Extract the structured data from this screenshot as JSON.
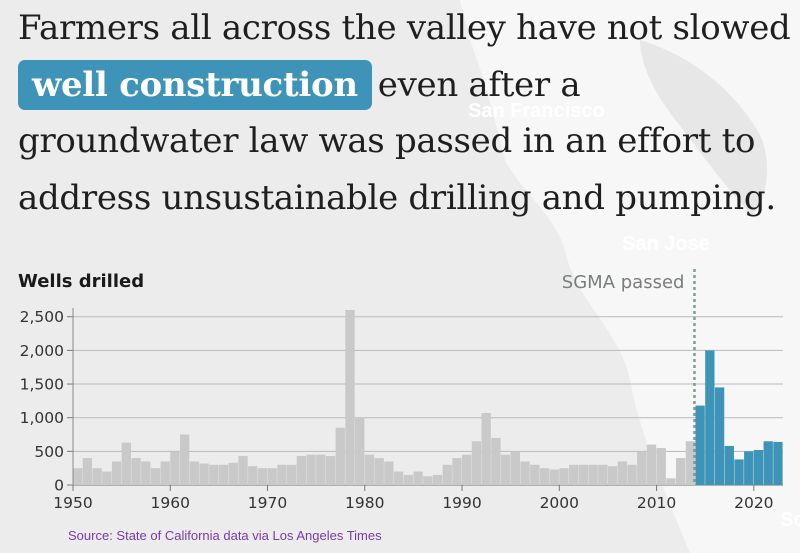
{
  "headline": {
    "line1": "Farmers all across the valley have not slowed",
    "highlight": "well construction",
    "line2_rest": "even after a",
    "line3": "groundwater law was passed in an effort to",
    "line4": "address unsustainable drilling and pumping."
  },
  "map_labels": {
    "city1": "San Francisco",
    "city2": "San Jose",
    "partial": "So"
  },
  "source": "Source: State of California data via Los Angeles Times",
  "colors": {
    "pre_sgma": "#c9c9c9",
    "post_sgma": "#3e94b8",
    "highlight_bg": "#3e94b8",
    "marker": "#7f9c95"
  },
  "chart_data": {
    "type": "bar",
    "ylabel": "Wells drilled",
    "xlim": [
      1950,
      2023
    ],
    "ylim": [
      0,
      2600
    ],
    "yticks": [
      0,
      500,
      1000,
      1500,
      2000,
      2500
    ],
    "ytick_labels": [
      "0",
      "500",
      "1,000",
      "1,500",
      "2,000",
      "2,500"
    ],
    "xticks": [
      1950,
      1960,
      1970,
      1980,
      1990,
      2000,
      2010,
      2020
    ],
    "xtick_labels": [
      "1950",
      "1960",
      "1970",
      "1980",
      "1990",
      "2000",
      "2010",
      "2020"
    ],
    "annotation": {
      "label": "SGMA passed",
      "year": 2014
    },
    "years": [
      1950,
      1951,
      1952,
      1953,
      1954,
      1955,
      1956,
      1957,
      1958,
      1959,
      1960,
      1961,
      1962,
      1963,
      1964,
      1965,
      1966,
      1967,
      1968,
      1969,
      1970,
      1971,
      1972,
      1973,
      1974,
      1975,
      1976,
      1977,
      1978,
      1979,
      1980,
      1981,
      1982,
      1983,
      1984,
      1985,
      1986,
      1987,
      1988,
      1989,
      1990,
      1991,
      1992,
      1993,
      1994,
      1995,
      1996,
      1997,
      1998,
      1999,
      2000,
      2001,
      2002,
      2003,
      2004,
      2005,
      2006,
      2007,
      2008,
      2009,
      2010,
      2011,
      2012,
      2013,
      2014,
      2015,
      2016,
      2017,
      2018,
      2019,
      2020,
      2021,
      2022
    ],
    "values": [
      250,
      400,
      250,
      200,
      350,
      630,
      400,
      350,
      250,
      350,
      500,
      750,
      350,
      320,
      300,
      300,
      330,
      430,
      280,
      250,
      250,
      300,
      300,
      430,
      450,
      450,
      430,
      850,
      2600,
      1000,
      450,
      400,
      350,
      200,
      150,
      200,
      130,
      150,
      300,
      400,
      450,
      650,
      1070,
      700,
      450,
      500,
      350,
      300,
      250,
      230,
      250,
      300,
      300,
      300,
      300,
      280,
      350,
      300,
      500,
      600,
      550,
      100,
      400,
      650,
      1180,
      2000,
      1450,
      580,
      380,
      500,
      520,
      650,
      640
    ],
    "series": [
      {
        "name": "",
        "from_year": 1950,
        "to_year": 2013
      },
      {
        "name": "",
        "from_year": 2014,
        "to_year": 2022
      }
    ]
  }
}
